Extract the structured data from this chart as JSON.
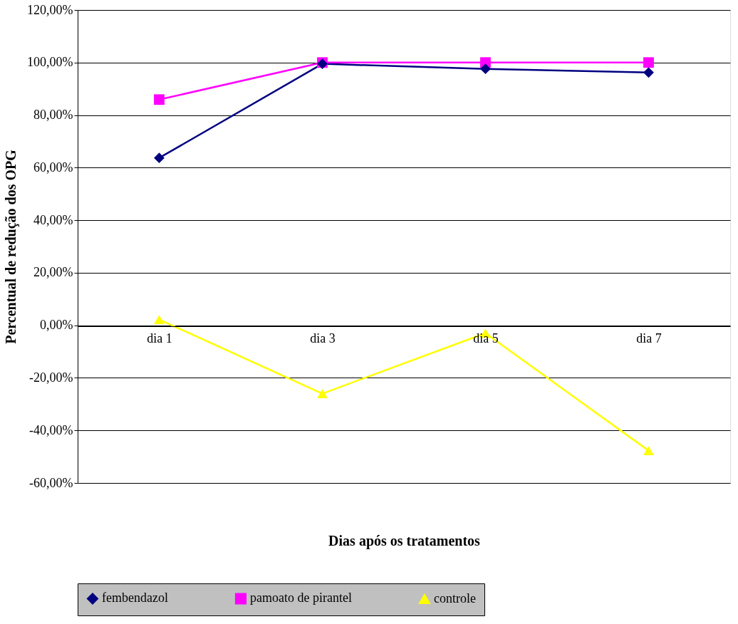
{
  "chart_data": {
    "type": "line",
    "xlabel": "Dias após os  tratamentos",
    "ylabel": "Percentual de redução dos OPG",
    "categories": [
      "dia 1",
      "dia 3",
      "dia 5",
      "dia 7"
    ],
    "series": [
      {
        "name": "fembendazol",
        "color": "#000080",
        "marker": "diamond",
        "values": [
          63.7,
          99.5,
          97.6,
          96.2
        ]
      },
      {
        "name": "pamoato de pirantel",
        "color": "#ff00ff",
        "marker": "square",
        "values": [
          85.9,
          100,
          100,
          100
        ]
      },
      {
        "name": "controle",
        "color": "#ffff00",
        "marker": "triangle",
        "values": [
          2.2,
          -26,
          -3,
          -47.7
        ]
      }
    ],
    "ylim": [
      -60,
      120
    ],
    "yticks": [
      {
        "value": -60,
        "label": "-60,00%"
      },
      {
        "value": -40,
        "label": "-40,00%"
      },
      {
        "value": -20,
        "label": "-20,00%"
      },
      {
        "value": 0,
        "label": "0,00%"
      },
      {
        "value": 20,
        "label": "20,00%"
      },
      {
        "value": 40,
        "label": "40,00%"
      },
      {
        "value": 60,
        "label": "60,00%"
      },
      {
        "value": 80,
        "label": "80,00%"
      },
      {
        "value": 100,
        "label": "100,00%"
      },
      {
        "value": 120,
        "label": "120,00%"
      }
    ],
    "grid": "y",
    "line_style": "solid",
    "legend": "bottom"
  }
}
